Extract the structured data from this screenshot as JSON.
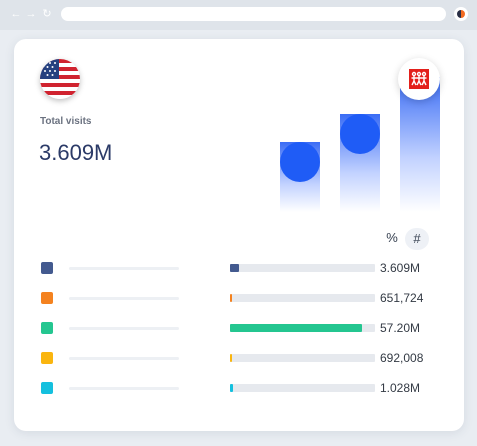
{
  "browser": {
    "back_glyph": "←",
    "forward_glyph": "→",
    "reload_glyph": "↻"
  },
  "summary": {
    "label": "Total visits",
    "value": "3.609M"
  },
  "icons": {
    "flag": "us-flag-icon",
    "brand_logo": "brand-logo-icon"
  },
  "chart_data": {
    "type": "bar",
    "values": [
      {
        "level": 0.43
      },
      {
        "level": 0.6
      },
      {
        "level": 0.83
      }
    ]
  },
  "toggle": {
    "percent_label": "%",
    "number_label": "#",
    "selected": "number"
  },
  "rows": [
    {
      "color": "#435a8f",
      "value": "3.609M",
      "share": 0.063
    },
    {
      "color": "#f4821f",
      "value": "651,724",
      "share": 0.011
    },
    {
      "color": "#24c690",
      "value": "57.20M",
      "share": 0.91
    },
    {
      "color": "#fab50f",
      "value": "692,008",
      "share": 0.012
    },
    {
      "color": "#14c0de",
      "value": "1.028M",
      "share": 0.018
    }
  ]
}
